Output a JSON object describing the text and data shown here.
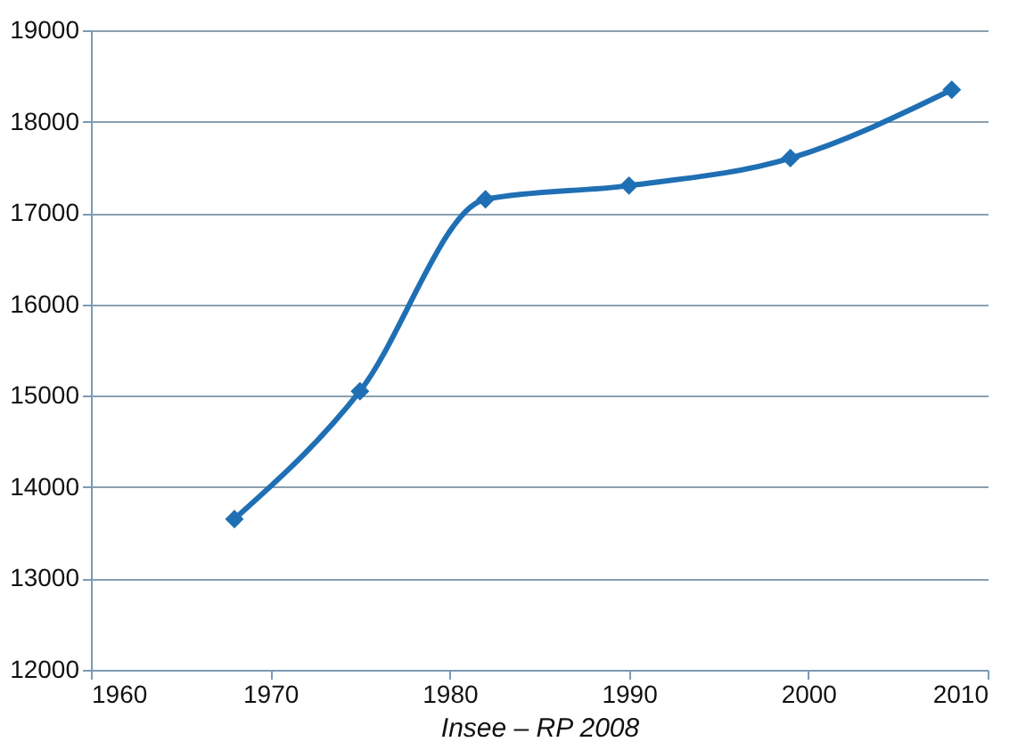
{
  "chart_data": {
    "type": "line",
    "x": [
      1968,
      1975,
      1982,
      1990,
      1999,
      2008
    ],
    "series": [
      {
        "color": "#1f6fb4",
        "values": [
          13650,
          15050,
          17150,
          17300,
          17600,
          18350
        ]
      }
    ],
    "xlim": [
      1960,
      2010
    ],
    "xticks": [
      1960,
      1970,
      1980,
      1990,
      2000,
      2010
    ],
    "ylim": [
      12000,
      19000
    ],
    "yticks": [
      12000,
      13000,
      14000,
      15000,
      16000,
      17000,
      18000,
      19000
    ],
    "grid": "y",
    "marker": "diamond",
    "line_style": "solid",
    "annotations": [
      "Insee – RP 2008"
    ]
  }
}
